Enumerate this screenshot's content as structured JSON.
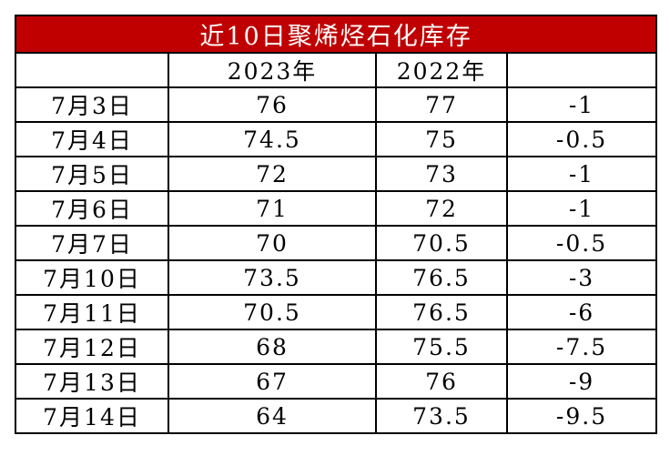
{
  "table": {
    "title": "近10日聚烯烃石化库存",
    "header": [
      "2023年",
      "2022年"
    ],
    "rows": [
      [
        "7月3日",
        "76",
        "77",
        "-1"
      ],
      [
        "7月4日",
        "74.5",
        "75",
        "-0.5"
      ],
      [
        "7月5日",
        "72",
        "73",
        "-1"
      ],
      [
        "7月6日",
        "71",
        "72",
        "-1"
      ],
      [
        "7月7日",
        "70",
        "70.5",
        "-0.5"
      ],
      [
        "7月10日",
        "73.5",
        "76.5",
        "-3"
      ],
      [
        "7月11日",
        "70.5",
        "76.5",
        "-6"
      ],
      [
        "7月12日",
        "68",
        "75.5",
        "-7.5"
      ],
      [
        "7月13日",
        "67",
        "76",
        "-9"
      ],
      [
        "7月14日",
        "64",
        "73.5",
        "-9.5"
      ]
    ]
  }
}
